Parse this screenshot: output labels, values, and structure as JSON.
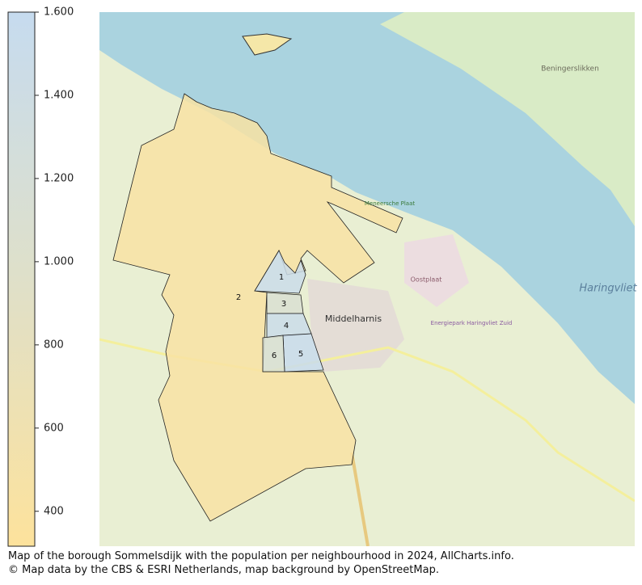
{
  "colorbar": {
    "lim": [
      316,
      1600
    ],
    "ticks": [
      400,
      600,
      800,
      {
        "value": 1000,
        "label": "1.000"
      },
      {
        "value": 1200,
        "label": "1.200"
      },
      {
        "value": 1400,
        "label": "1.400"
      },
      {
        "value": 1600,
        "label": "1.600"
      }
    ],
    "colors": [
      "#fde29c",
      "#dfe0c9",
      "#c6dbef"
    ]
  },
  "neighbourhoods": [
    {
      "label": "1",
      "value": 1500
    },
    {
      "label": "2",
      "value": 420
    },
    {
      "label": "3",
      "value": 1100
    },
    {
      "label": "4",
      "value": 1500
    },
    {
      "label": "5",
      "value": 1550
    },
    {
      "label": "6",
      "value": 1150
    }
  ],
  "map_labels": [
    "Middelharnis",
    "Haringvliet",
    "Beningerslikken",
    "Oostplaat",
    "Meneersche Plaat",
    "Energiepark Haringvliet Zuid"
  ],
  "caption": [
    "Map of the borough Sommelsdijk with the population per neighbourhood in 2024, AllCharts.info.",
    "© Map data by the CBS & ESRI Netherlands, map background by OpenStreetMap."
  ]
}
